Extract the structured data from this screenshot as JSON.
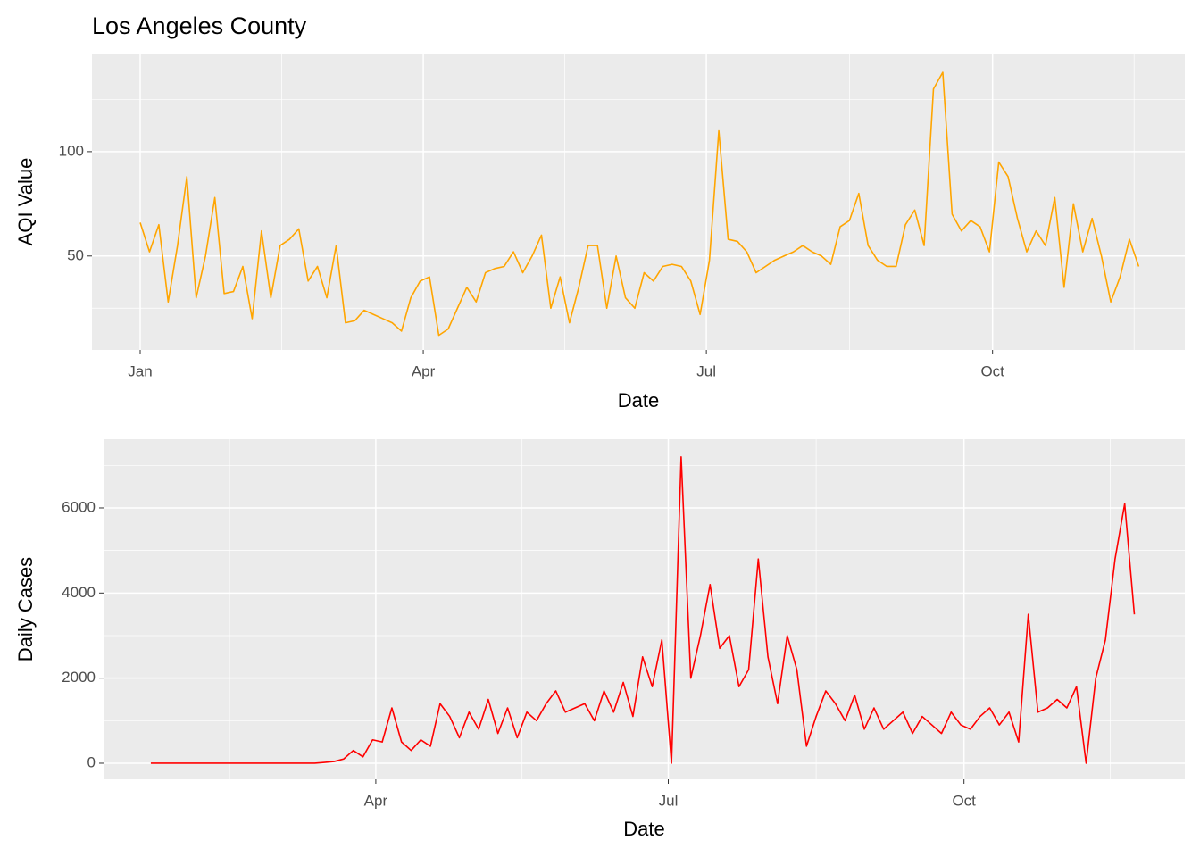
{
  "chart_data": [
    {
      "type": "line",
      "title": "Los Angeles County",
      "xlabel": "Date",
      "ylabel": "AQI Value",
      "x": [
        0,
        3,
        6,
        9,
        12,
        15,
        18,
        21,
        24,
        27,
        30,
        33,
        36,
        39,
        42,
        45,
        48,
        51,
        54,
        57,
        60,
        63,
        66,
        69,
        72,
        75,
        78,
        81,
        84,
        87,
        90,
        93,
        96,
        99,
        102,
        105,
        108,
        111,
        114,
        117,
        120,
        123,
        126,
        129,
        132,
        135,
        138,
        141,
        144,
        147,
        150,
        153,
        156,
        159,
        162,
        165,
        168,
        171,
        174,
        177,
        180,
        183,
        186,
        189,
        192,
        195,
        198,
        201,
        204,
        207,
        210,
        213,
        216,
        219,
        222,
        225,
        228,
        231,
        234,
        237,
        240,
        243,
        246,
        249,
        252,
        255,
        258,
        261,
        264,
        267,
        270,
        273,
        276,
        279,
        282,
        285,
        288,
        291,
        294,
        297,
        300,
        303,
        306,
        309,
        312,
        315,
        318,
        321
      ],
      "series": [
        {
          "color": "#FFA500",
          "values": [
            66,
            52,
            65,
            28,
            55,
            88,
            30,
            50,
            78,
            32,
            33,
            45,
            20,
            62,
            30,
            55,
            58,
            63,
            38,
            45,
            30,
            55,
            18,
            19,
            24,
            22,
            20,
            18,
            14,
            30,
            38,
            40,
            12,
            15,
            25,
            35,
            28,
            42,
            44,
            45,
            52,
            42,
            50,
            60,
            25,
            40,
            18,
            35,
            55,
            55,
            25,
            50,
            30,
            25,
            42,
            38,
            45,
            46,
            45,
            38,
            22,
            48,
            110,
            58,
            57,
            52,
            42,
            45,
            48,
            50,
            52,
            55,
            52,
            50,
            46,
            64,
            67,
            80,
            55,
            48,
            45,
            45,
            65,
            72,
            55,
            130,
            138,
            70,
            62,
            67,
            64,
            52,
            95,
            88,
            68,
            52,
            62,
            55,
            78,
            35,
            75,
            52,
            68,
            50,
            28,
            40,
            58,
            45
          ]
        }
      ],
      "xlim": [
        -15.5,
        335.8
      ],
      "xticks": [
        {
          "value": 0,
          "label": "Jan"
        },
        {
          "value": 91,
          "label": "Apr"
        },
        {
          "value": 182,
          "label": "Jul"
        },
        {
          "value": 274,
          "label": "Oct"
        }
      ],
      "ylim": [
        5,
        147
      ],
      "yticks": [
        50,
        100
      ],
      "grid": true
    },
    {
      "type": "line",
      "xlabel": "Date",
      "ylabel": "Daily Cases",
      "x": [
        21,
        24,
        27,
        30,
        33,
        36,
        39,
        42,
        45,
        48,
        51,
        54,
        57,
        60,
        63,
        66,
        69,
        72,
        75,
        78,
        81,
        84,
        87,
        90,
        93,
        96,
        99,
        102,
        105,
        108,
        111,
        114,
        117,
        120,
        123,
        126,
        129,
        132,
        135,
        138,
        141,
        144,
        147,
        150,
        153,
        156,
        159,
        162,
        165,
        168,
        171,
        174,
        177,
        180,
        183,
        186,
        189,
        192,
        195,
        198,
        201,
        204,
        207,
        210,
        213,
        216,
        219,
        222,
        225,
        228,
        231,
        234,
        237,
        240,
        243,
        246,
        249,
        252,
        255,
        258,
        261,
        264,
        267,
        270,
        273,
        276,
        279,
        282,
        285,
        288,
        291,
        294,
        297,
        300,
        303,
        306,
        309,
        312,
        315,
        318,
        321,
        324,
        327
      ],
      "series": [
        {
          "color": "#FF0000",
          "values": [
            0,
            0,
            0,
            0,
            0,
            0,
            0,
            0,
            0,
            0,
            0,
            0,
            0,
            0,
            0,
            0,
            0,
            0,
            20,
            40,
            100,
            300,
            150,
            550,
            500,
            1300,
            500,
            300,
            550,
            400,
            1400,
            1100,
            600,
            1200,
            800,
            1500,
            700,
            1300,
            600,
            1200,
            1000,
            1400,
            1700,
            1200,
            1300,
            1400,
            1000,
            1700,
            1200,
            1900,
            1100,
            2500,
            1800,
            2900,
            0,
            7200,
            2000,
            3000,
            4200,
            2700,
            3000,
            1800,
            2200,
            4800,
            2500,
            1400,
            3000,
            2200,
            400,
            1100,
            1700,
            1400,
            1000,
            1600,
            800,
            1300,
            800,
            1000,
            1200,
            700,
            1100,
            900,
            700,
            1200,
            900,
            800,
            1100,
            1300,
            900,
            1200,
            500,
            3500,
            1200,
            1300,
            1500,
            1300,
            1800,
            0,
            2000,
            2900,
            4800,
            6100,
            3500
          ]
        }
      ],
      "xlim": [
        6.3,
        342.7
      ],
      "xticks": [
        {
          "value": 91,
          "label": "Apr"
        },
        {
          "value": 182,
          "label": "Jul"
        },
        {
          "value": 274,
          "label": "Oct"
        }
      ],
      "ylim": [
        -378,
        7615
      ],
      "yticks": [
        0,
        2000,
        4000,
        6000
      ],
      "grid": true
    }
  ]
}
